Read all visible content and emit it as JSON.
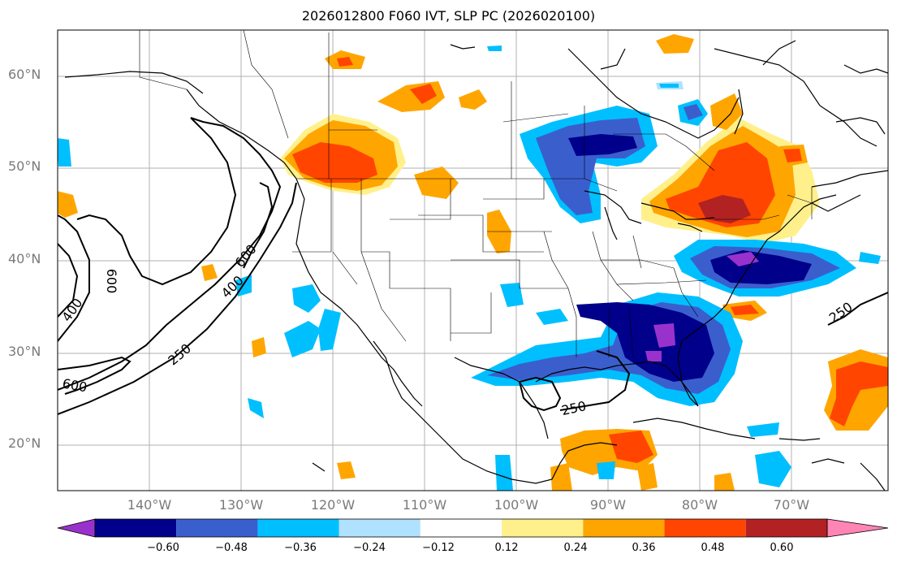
{
  "title": "2026012800 F060 IVT, SLP PC (2026020100)",
  "axes": {
    "lat_labels": [
      "60°N",
      "50°N",
      "40°N",
      "30°N",
      "20°N"
    ],
    "lon_labels": [
      "140°W",
      "130°W",
      "120°W",
      "110°W",
      "100°W",
      "90°W",
      "80°W",
      "70°W"
    ]
  },
  "contour_labels": [
    "400",
    "600",
    "600",
    "400",
    "600",
    "250",
    "250",
    "250"
  ],
  "colorbar": {
    "ticks": [
      "−0.60",
      "−0.48",
      "−0.36",
      "−0.24",
      "−0.12",
      "0.12",
      "0.24",
      "0.36",
      "0.48",
      "0.60"
    ],
    "colors": [
      "#9932cc",
      "#00008b",
      "#3a5fcd",
      "#00bfff",
      "#b0e2ff",
      "#ffffff",
      "#fff08c",
      "#ffa500",
      "#ff4500",
      "#b22222",
      "#ff85b4"
    ]
  },
  "colors": {
    "grid": "#b0b0b0",
    "coast": "#000000"
  }
}
